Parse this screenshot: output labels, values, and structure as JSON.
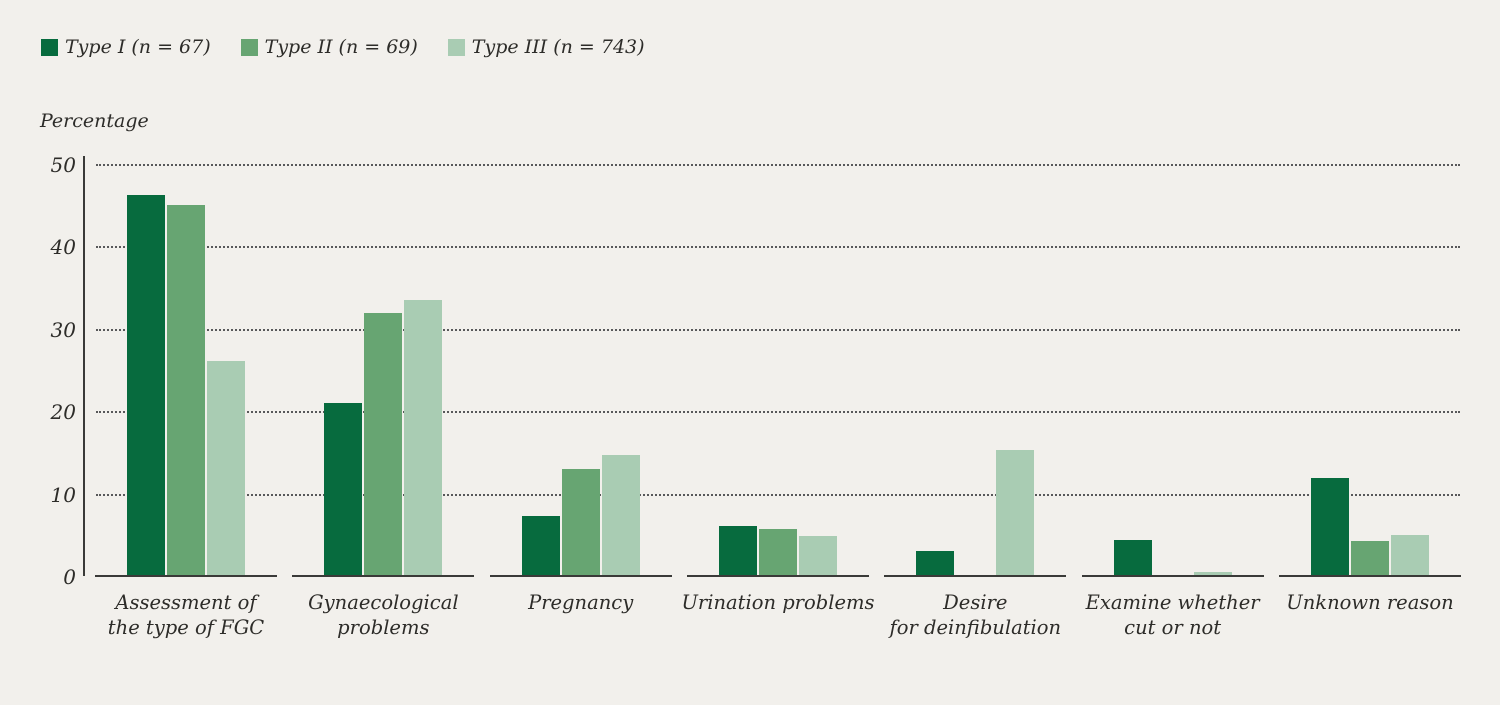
{
  "colors": {
    "background": "#f2f0ec",
    "type1": "#076b3e",
    "type2": "#67a572",
    "type3": "#a9ccb3",
    "text": "#2d2c29",
    "axis": "#3a3a38",
    "gridline": "#58585a"
  },
  "legend": {
    "items": [
      {
        "label": "Type I (n = 67)",
        "color": "#076b3e"
      },
      {
        "label": "Type II (n = 69)",
        "color": "#67a572"
      },
      {
        "label": "Type III (n = 743)",
        "color": "#a9ccb3"
      }
    ]
  },
  "y_axis": {
    "title": "Percentage",
    "ticks": [
      50,
      40,
      30,
      20,
      10,
      0
    ]
  },
  "chart_data": {
    "type": "bar",
    "title": "",
    "xlabel": "",
    "ylabel": "Percentage",
    "ylim": [
      0,
      50
    ],
    "grid": "horizontal-dotted",
    "legend_position": "top-left",
    "categories": [
      "Assessment of the type of FGC",
      "Gynaecological problems",
      "Pregnancy",
      "Urination problems",
      "Desire for deinfibulation",
      "Examine whether cut or not",
      "Unknown reason"
    ],
    "category_label_lines": [
      [
        "Assessment of",
        "the type of FGC"
      ],
      [
        "Gynaecological",
        "problems"
      ],
      [
        "Pregnancy"
      ],
      [
        "Urination problems"
      ],
      [
        "Desire",
        "for deinfibulation"
      ],
      [
        "Examine whether",
        "cut or not"
      ],
      [
        "Unknown reason"
      ]
    ],
    "series": [
      {
        "name": "Type I (n = 67)",
        "color": "#076b3e",
        "values": [
          46.1,
          20.8,
          7.2,
          5.9,
          2.9,
          4.2,
          11.7
        ]
      },
      {
        "name": "Type II (n = 69)",
        "color": "#67a572",
        "values": [
          44.8,
          31.7,
          12.8,
          5.6,
          0,
          0,
          4.1
        ]
      },
      {
        "name": "Type III (n = 743)",
        "color": "#a9ccb3",
        "values": [
          26.0,
          33.3,
          14.5,
          4.7,
          15.1,
          0.4,
          4.8
        ]
      }
    ]
  }
}
